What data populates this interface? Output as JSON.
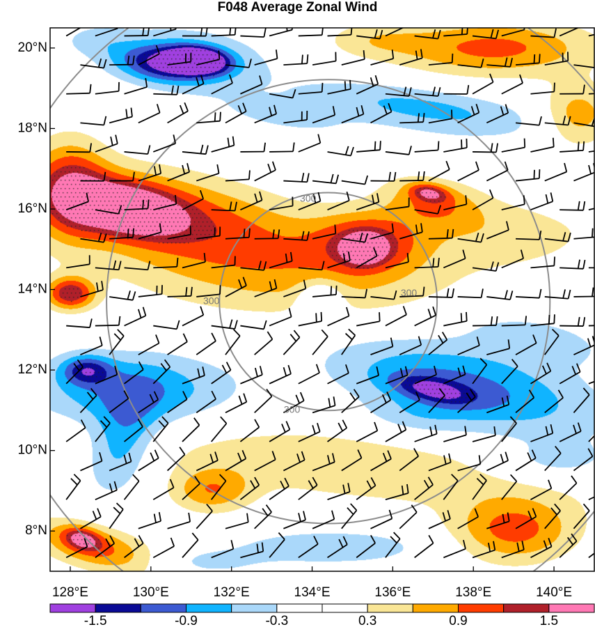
{
  "title": "F048 Average Zonal Wind",
  "map": {
    "lon_range": [
      127.5,
      141
    ],
    "lat_range": [
      7,
      20.5
    ],
    "x_ticks": [
      {
        "lon": 128,
        "label": "128°E"
      },
      {
        "lon": 130,
        "label": "130°E"
      },
      {
        "lon": 132,
        "label": "132°E"
      },
      {
        "lon": 134,
        "label": "134°E"
      },
      {
        "lon": 136,
        "label": "136°E"
      },
      {
        "lon": 138,
        "label": "138°E"
      },
      {
        "lon": 140,
        "label": "140°E"
      }
    ],
    "y_ticks": [
      {
        "lat": 20,
        "label": "20°N"
      },
      {
        "lat": 18,
        "label": "18°N"
      },
      {
        "lat": 16,
        "label": "16°N"
      },
      {
        "lat": 14,
        "label": "14°N"
      },
      {
        "lat": 12,
        "label": "12°N"
      },
      {
        "lat": 10,
        "label": "10°N"
      },
      {
        "lat": 8,
        "label": "8°N"
      }
    ],
    "range_rings": {
      "center": {
        "lon": 134.4,
        "lat": 13.7
      },
      "labels": [
        {
          "text": "300",
          "lon": 133.9,
          "lat": 16.25
        },
        {
          "text": "300",
          "lon": 136.4,
          "lat": 13.9
        },
        {
          "text": "300",
          "lon": 131.5,
          "lat": 13.7
        },
        {
          "text": "300",
          "lon": 133.5,
          "lat": 11.0
        }
      ]
    }
  },
  "colorbar": {
    "colors": [
      "#a040e0",
      "#0a0a96",
      "#3c5ad2",
      "#10b4ff",
      "#aad8fa",
      "#ffffff",
      "#ffffff",
      "#fae696",
      "#ffaa00",
      "#ff3c00",
      "#b0202a",
      "#ff78b4"
    ],
    "labels": [
      "-1.5",
      "-0.9",
      "-0.3",
      "0.3",
      "0.9",
      "1.5"
    ]
  },
  "field": {
    "blobs": [
      {
        "lon": 131.0,
        "lat": 19.8,
        "rx": 2.2,
        "ry": 0.8,
        "a": -0.5,
        "rot": -5
      },
      {
        "lon": 130.4,
        "lat": 19.6,
        "rx": 1.2,
        "ry": 0.45,
        "a": -1.3,
        "rot": -5
      },
      {
        "lon": 131.2,
        "lat": 19.7,
        "rx": 0.7,
        "ry": 0.3,
        "a": -1.9,
        "rot": -5
      },
      {
        "lon": 128.6,
        "lat": 20.2,
        "rx": 0.9,
        "ry": 0.4,
        "a": -0.3,
        "rot": 0
      },
      {
        "lon": 136.8,
        "lat": 18.5,
        "rx": 3.0,
        "ry": 0.55,
        "a": -0.7,
        "rot": -8
      },
      {
        "lon": 133.2,
        "lat": 18.3,
        "rx": 2.0,
        "ry": 0.45,
        "a": -0.35,
        "rot": -10
      },
      {
        "lon": 138.5,
        "lat": 20.0,
        "rx": 2.5,
        "ry": 0.7,
        "a": 1.0,
        "rot": 0
      },
      {
        "lon": 135.5,
        "lat": 20.2,
        "rx": 1.3,
        "ry": 0.45,
        "a": 0.4,
        "rot": 0
      },
      {
        "lon": 140.6,
        "lat": 18.3,
        "rx": 0.9,
        "ry": 0.8,
        "a": 0.8,
        "rot": 0
      },
      {
        "lon": 137.5,
        "lat": 17.3,
        "rx": 2.0,
        "ry": 0.45,
        "a": -0.25,
        "rot": -6
      },
      {
        "lon": 130.3,
        "lat": 15.9,
        "rx": 3.5,
        "ry": 1.05,
        "a": 1.0,
        "rot": -10
      },
      {
        "lon": 129.4,
        "lat": 16.0,
        "rx": 1.3,
        "ry": 0.6,
        "a": 1.6,
        "rot": -10
      },
      {
        "lon": 128.0,
        "lat": 16.5,
        "rx": 0.9,
        "ry": 1.2,
        "a": 1.0,
        "rot": 0
      },
      {
        "lon": 133.2,
        "lat": 14.4,
        "rx": 4.3,
        "ry": 1.2,
        "a": 0.65,
        "rot": -5
      },
      {
        "lon": 135.4,
        "lat": 15.2,
        "rx": 1.3,
        "ry": 0.75,
        "a": 1.0,
        "rot": 0
      },
      {
        "lon": 135.3,
        "lat": 15.0,
        "rx": 0.5,
        "ry": 0.35,
        "a": 1.3,
        "rot": 0
      },
      {
        "lon": 137.0,
        "lat": 16.2,
        "rx": 1.2,
        "ry": 0.6,
        "a": 0.8,
        "rot": -10
      },
      {
        "lon": 136.9,
        "lat": 16.4,
        "rx": 0.45,
        "ry": 0.2,
        "a": 0.9,
        "rot": -10
      },
      {
        "lon": 138.8,
        "lat": 15.4,
        "rx": 2.5,
        "ry": 0.9,
        "a": 0.45,
        "rot": 0
      },
      {
        "lon": 140.3,
        "lat": 16.5,
        "rx": 0.7,
        "ry": 0.6,
        "a": -0.1,
        "rot": 0
      },
      {
        "lon": 128.0,
        "lat": 13.9,
        "rx": 0.6,
        "ry": 0.4,
        "a": 1.4,
        "rot": 0
      },
      {
        "lon": 134.2,
        "lat": 13.8,
        "rx": 0.55,
        "ry": 0.45,
        "a": -0.7,
        "rot": 0
      },
      {
        "lon": 129.5,
        "lat": 11.5,
        "rx": 2.5,
        "ry": 0.9,
        "a": -0.9,
        "rot": 0
      },
      {
        "lon": 128.4,
        "lat": 12.0,
        "rx": 0.6,
        "ry": 0.35,
        "a": -1.0,
        "rot": 0
      },
      {
        "lon": 129.3,
        "lat": 10.2,
        "rx": 0.8,
        "ry": 1.3,
        "a": -0.8,
        "rot": -20
      },
      {
        "lon": 137.8,
        "lat": 11.6,
        "rx": 3.3,
        "ry": 1.0,
        "a": -1.0,
        "rot": -12
      },
      {
        "lon": 137.0,
        "lat": 11.5,
        "rx": 1.0,
        "ry": 0.3,
        "a": -0.9,
        "rot": -12
      },
      {
        "lon": 136.5,
        "lat": 10.8,
        "rx": 1.3,
        "ry": 0.45,
        "a": -0.3,
        "rot": -5
      },
      {
        "lon": 139.5,
        "lat": 12.8,
        "rx": 1.8,
        "ry": 0.55,
        "a": -0.5,
        "rot": -10
      },
      {
        "lon": 135.0,
        "lat": 9.6,
        "rx": 5.5,
        "ry": 0.9,
        "a": 0.55,
        "rot": -6
      },
      {
        "lon": 131.5,
        "lat": 9.0,
        "rx": 1.0,
        "ry": 0.55,
        "a": 0.8,
        "rot": 0
      },
      {
        "lon": 128.6,
        "lat": 7.6,
        "rx": 1.6,
        "ry": 0.55,
        "a": 1.0,
        "rot": -15
      },
      {
        "lon": 128.3,
        "lat": 7.8,
        "rx": 0.45,
        "ry": 0.25,
        "a": 1.0,
        "rot": -15
      },
      {
        "lon": 134.5,
        "lat": 7.6,
        "rx": 2.5,
        "ry": 0.45,
        "a": -0.55,
        "rot": 0
      },
      {
        "lon": 139.0,
        "lat": 8.0,
        "rx": 1.5,
        "ry": 0.8,
        "a": 1.0,
        "rot": 0
      },
      {
        "lon": 140.0,
        "lat": 9.7,
        "rx": 1.5,
        "ry": 0.5,
        "a": -0.45,
        "rot": 0
      },
      {
        "lon": 131.3,
        "lat": 7.2,
        "rx": 1.5,
        "ry": 0.35,
        "a": -0.35,
        "rot": 0
      }
    ]
  }
}
